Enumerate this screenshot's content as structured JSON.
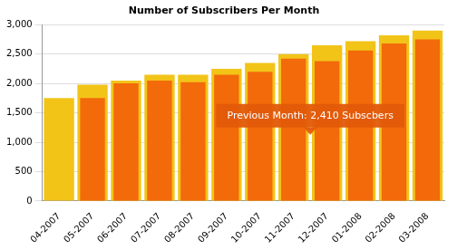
{
  "chart_data": {
    "type": "bar",
    "title": "Number of Subscribers Per Month",
    "categories": [
      "04-2007",
      "05-2007",
      "06-2007",
      "07-2007",
      "08-2007",
      "09-2007",
      "10-2007",
      "11-2007",
      "12-2007",
      "01-2008",
      "02-2008",
      "03-2008"
    ],
    "series": [
      {
        "color": "#f26a0a",
        "values": [
          null,
          1750,
          2000,
          2050,
          2020,
          2150,
          2200,
          2420,
          2380,
          2560,
          2680,
          2750
        ]
      },
      {
        "color": "#f2c418",
        "values": [
          1750,
          1980,
          2050,
          2150,
          2150,
          2250,
          2350,
          2500,
          2650,
          2720,
          2820,
          2900
        ]
      }
    ],
    "ylim": [
      0,
      3000
    ],
    "yticks": [
      0,
      500,
      {
        "value": 1000,
        "label": "1,000"
      },
      {
        "value": 1500,
        "label": "1,500"
      },
      {
        "value": 2000,
        "label": "2,000"
      },
      {
        "value": 2500,
        "label": "2,500"
      },
      {
        "value": 3000,
        "label": "3,000"
      }
    ],
    "grid": true,
    "annotations": [
      "Previous Month: 2,410 Subscbers"
    ]
  }
}
